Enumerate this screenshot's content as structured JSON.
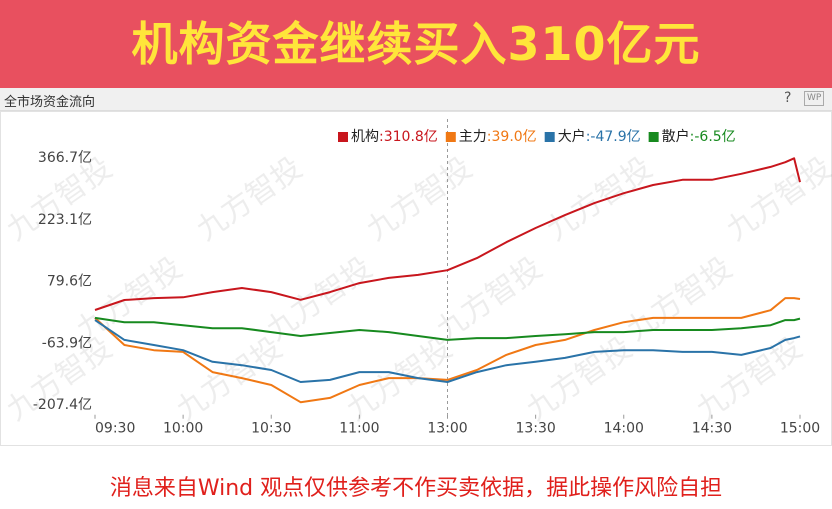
{
  "banner": {
    "title": "机构资金继续买入310亿元"
  },
  "panel": {
    "title": "全市场资金流向",
    "help": "?",
    "icon": "WP"
  },
  "watermark": "九方智投",
  "chart_data": {
    "type": "line",
    "x": [
      0,
      10,
      20,
      30,
      40,
      50,
      60,
      70,
      80,
      90,
      100,
      110,
      120,
      130,
      140,
      150,
      160,
      170,
      180,
      190,
      200,
      210,
      220,
      230,
      235,
      238,
      240
    ],
    "xlim": [
      0,
      240
    ],
    "xticks": [
      {
        "value": 0,
        "label": "09:30"
      },
      {
        "value": 30,
        "label": "10:00"
      },
      {
        "value": 60,
        "label": "10:30"
      },
      {
        "value": 90,
        "label": "11:00"
      },
      {
        "value": 120,
        "label": "13:00"
      },
      {
        "value": 150,
        "label": "13:30"
      },
      {
        "value": 180,
        "label": "14:00"
      },
      {
        "value": 210,
        "label": "14:30"
      },
      {
        "value": 240,
        "label": "15:00"
      }
    ],
    "ylim": [
      -230,
      400
    ],
    "yticks": [
      {
        "value": 366.7,
        "label": "366.7亿"
      },
      {
        "value": 223.1,
        "label": "223.1亿"
      },
      {
        "value": 79.6,
        "label": "79.6亿"
      },
      {
        "value": -63.9,
        "label": "-63.9亿"
      },
      {
        "value": -207.4,
        "label": "-207.4亿"
      }
    ],
    "series": [
      {
        "name": "机构",
        "legend_label": ":310.8亿",
        "color": "#c8161d",
        "values": [
          13.4,
          36.6,
          41,
          43,
          55,
          64.5,
          55,
          37,
          55,
          76,
          88,
          95,
          106,
          134,
          171,
          204,
          234,
          262,
          285,
          304,
          316,
          316,
          330,
          346,
          357,
          366,
          310.8
        ]
      },
      {
        "name": "主力",
        "legend_label": ":39.0亿",
        "color": "#f07814",
        "values": [
          -5,
          -68,
          -80,
          -84,
          -131,
          -145,
          -161,
          -201,
          -191,
          -161,
          -145,
          -145,
          -149,
          -126,
          -91,
          -68,
          -56,
          -33,
          -15,
          -5,
          -5,
          -5,
          -5,
          13,
          41,
          41,
          39.0
        ]
      },
      {
        "name": "大户",
        "legend_label": ":-47.9亿",
        "color": "#2a73a8",
        "values": [
          -10,
          -56,
          -68,
          -80,
          -107,
          -115,
          -126,
          -154,
          -149,
          -131,
          -131,
          -145,
          -154,
          -131,
          -115,
          -107,
          -98,
          -84,
          -80,
          -80,
          -84,
          -84,
          -91,
          -75,
          -56,
          -52,
          -47.9
        ]
      },
      {
        "name": "散户",
        "legend_label": ":-6.5亿",
        "color": "#178a1f",
        "values": [
          -5,
          -15,
          -15,
          -22,
          -29,
          -29,
          -38,
          -47,
          -40,
          -33,
          -38,
          -47,
          -56,
          -52,
          -52,
          -47,
          -43,
          -38,
          -38,
          -33,
          -33,
          -33,
          -29,
          -22,
          -10,
          -10,
          -6.5
        ]
      }
    ]
  },
  "footer": {
    "disclaimer": "消息来自Wind  观点仅供参考不作买卖依据，据此操作风险自担"
  }
}
